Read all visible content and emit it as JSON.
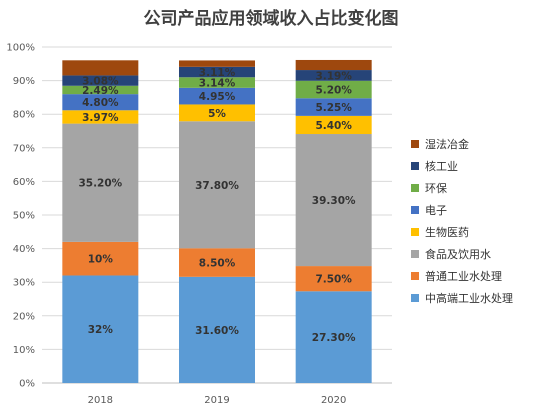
{
  "chart_data": {
    "type": "stacked-bar",
    "title": "公司产品应用领域收入占比变化图",
    "categories": [
      "2018",
      "2019",
      "2020"
    ],
    "ylim": [
      0,
      100
    ],
    "yticks": [
      "0%",
      "10%",
      "20%",
      "30%",
      "40%",
      "50%",
      "60%",
      "70%",
      "80%",
      "90%",
      "100%"
    ],
    "legend_position": "right",
    "grid": true,
    "series": [
      {
        "name": "中高端工业水处理",
        "color": "#5B9BD5",
        "values": [
          32,
          31.6,
          27.3
        ],
        "labels": [
          "32%",
          "31.60%",
          "27.30%"
        ]
      },
      {
        "name": "普通工业水处理",
        "color": "#ED7D31",
        "values": [
          10,
          8.5,
          7.5
        ],
        "labels": [
          "10%",
          "8.50%",
          "7.50%"
        ]
      },
      {
        "name": "食品及饮用水",
        "color": "#A5A5A5",
        "values": [
          35.2,
          37.8,
          39.3
        ],
        "labels": [
          "35.20%",
          "37.80%",
          "39.30%"
        ]
      },
      {
        "name": "生物医药",
        "color": "#FFC000",
        "values": [
          3.97,
          5,
          5.4
        ],
        "labels": [
          "3.97%",
          "5%",
          "5.40%"
        ]
      },
      {
        "name": "电子",
        "color": "#4472C4",
        "values": [
          4.8,
          4.95,
          5.25
        ],
        "labels": [
          "4.80%",
          "4.95%",
          "5.25%"
        ]
      },
      {
        "name": "环保",
        "color": "#70AD47",
        "values": [
          2.49,
          3.14,
          5.2
        ],
        "labels": [
          "2.49%",
          "3.14%",
          "5.20%"
        ]
      },
      {
        "name": "核工业",
        "color": "#264478",
        "values": [
          3.08,
          3.11,
          3.19
        ],
        "labels": [
          "3.08%",
          "3.11%",
          "3.19%"
        ]
      },
      {
        "name": "湿法冶金",
        "color": "#9E480E",
        "values": [
          4.5,
          1.9,
          3.0
        ],
        "labels": [
          "",
          "",
          ""
        ]
      }
    ],
    "legend_order": [
      "湿法冶金",
      "核工业",
      "环保",
      "电子",
      "生物医药",
      "食品及饮用水",
      "普通工业水处理",
      "中高端工业水处理"
    ]
  }
}
